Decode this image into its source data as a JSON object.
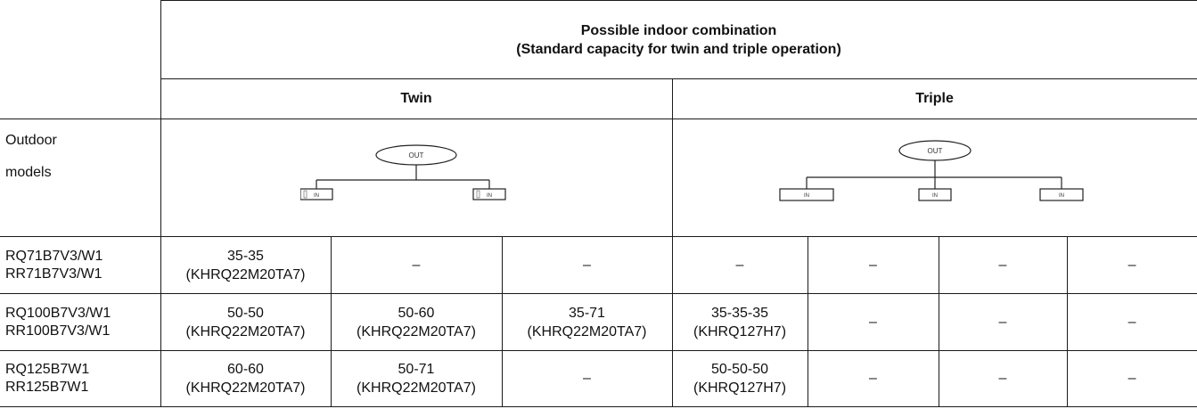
{
  "header": {
    "title_line1": "Possible indoor combination",
    "title_line2": "(Standard capacity for twin and triple operation)",
    "twin": "Twin",
    "triple": "Triple"
  },
  "row_header": {
    "line1": "Outdoor",
    "line2": "models"
  },
  "diagram_labels": {
    "out": "OUT",
    "in": "IN"
  },
  "rows": [
    {
      "model_line1": "RQ71B7V3/W1",
      "model_line2": "RR71B7V3/W1",
      "twin": [
        {
          "value": "35-35",
          "kit": "(KHRQ22M20TA7)"
        },
        {
          "dash": "–"
        },
        {
          "dash": "–"
        }
      ],
      "triple": [
        "–",
        "–",
        "–",
        "–"
      ]
    },
    {
      "model_line1": "RQ100B7V3/W1",
      "model_line2": "RR100B7V3/W1",
      "twin": [
        {
          "value": "50-50",
          "kit": "(KHRQ22M20TA7)"
        },
        {
          "value": "50-60",
          "kit": "(KHRQ22M20TA7)"
        },
        {
          "value": "35-71",
          "kit": "(KHRQ22M20TA7)"
        }
      ],
      "triple_first": {
        "value": "35-35-35",
        "kit": "(KHRQ127H7)"
      },
      "triple": [
        "–",
        "–",
        "–"
      ]
    },
    {
      "model_line1": "RQ125B7W1",
      "model_line2": "RR125B7W1",
      "twin": [
        {
          "value": "60-60",
          "kit": "(KHRQ22M20TA7)"
        },
        {
          "value": "50-71",
          "kit": "(KHRQ22M20TA7)"
        },
        {
          "dash": "–"
        }
      ],
      "triple_first": {
        "value": "50-50-50",
        "kit": "(KHRQ127H7)"
      },
      "triple": [
        "–",
        "–",
        "–"
      ]
    }
  ]
}
